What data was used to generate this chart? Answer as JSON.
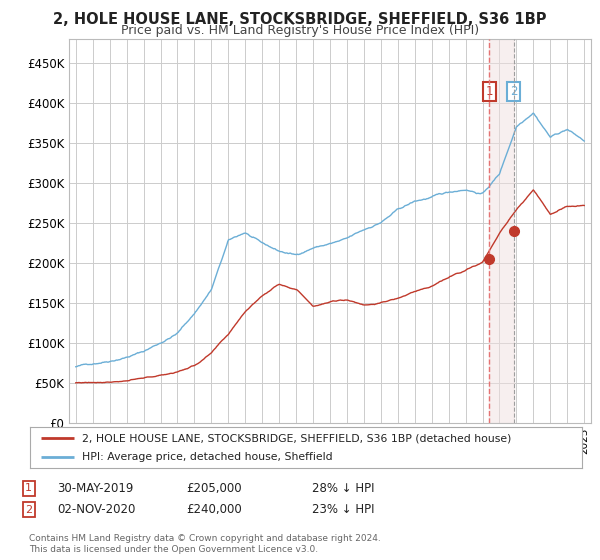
{
  "title": "2, HOLE HOUSE LANE, STOCKSBRIDGE, SHEFFIELD, S36 1BP",
  "subtitle": "Price paid vs. HM Land Registry's House Price Index (HPI)",
  "legend_line1": "2, HOLE HOUSE LANE, STOCKSBRIDGE, SHEFFIELD, S36 1BP (detached house)",
  "legend_line2": "HPI: Average price, detached house, Sheffield",
  "transaction1_date": "30-MAY-2019",
  "transaction1_price": "£205,000",
  "transaction1_hpi": "28% ↓ HPI",
  "transaction2_date": "02-NOV-2020",
  "transaction2_price": "£240,000",
  "transaction2_hpi": "23% ↓ HPI",
  "footer": "Contains HM Land Registry data © Crown copyright and database right 2024.\nThis data is licensed under the Open Government Licence v3.0.",
  "hpi_color": "#6baed6",
  "price_color": "#c0392b",
  "vline1_color": "#e57373",
  "vline2_color": "#9e9e9e",
  "background_color": "#ffffff",
  "grid_color": "#cccccc",
  "ylim": [
    0,
    480000
  ],
  "yticks": [
    0,
    50000,
    100000,
    150000,
    200000,
    250000,
    300000,
    350000,
    400000,
    450000
  ],
  "transaction1_year": 2019.41,
  "transaction2_year": 2020.84,
  "hpi_anchors_years": [
    1995,
    1996,
    1997,
    1998,
    1999,
    2000,
    2001,
    2002,
    2003,
    2004,
    2005,
    2006,
    2007,
    2008,
    2009,
    2010,
    2011,
    2012,
    2013,
    2014,
    2015,
    2016,
    2017,
    2018,
    2019,
    2020,
    2021,
    2022,
    2023,
    2024,
    2025
  ],
  "hpi_anchors_vals": [
    70000,
    74000,
    79000,
    85000,
    92000,
    103000,
    115000,
    140000,
    170000,
    230000,
    240000,
    225000,
    215000,
    210000,
    220000,
    225000,
    230000,
    240000,
    250000,
    265000,
    275000,
    280000,
    285000,
    290000,
    285000,
    310000,
    370000,
    390000,
    360000,
    370000,
    355000
  ],
  "prop_anchors_years": [
    1995,
    1996,
    1997,
    1998,
    1999,
    2000,
    2001,
    2002,
    2003,
    2004,
    2005,
    2006,
    2007,
    2008,
    2009,
    2010,
    2011,
    2012,
    2013,
    2014,
    2015,
    2016,
    2017,
    2018,
    2019,
    2020,
    2021,
    2022,
    2023,
    2024,
    2025
  ],
  "prop_anchors_vals": [
    50000,
    51000,
    53000,
    55000,
    57000,
    60000,
    65000,
    73000,
    88000,
    110000,
    140000,
    160000,
    175000,
    170000,
    150000,
    155000,
    158000,
    152000,
    155000,
    160000,
    168000,
    175000,
    185000,
    195000,
    205000,
    240000,
    270000,
    295000,
    265000,
    275000,
    275000
  ]
}
